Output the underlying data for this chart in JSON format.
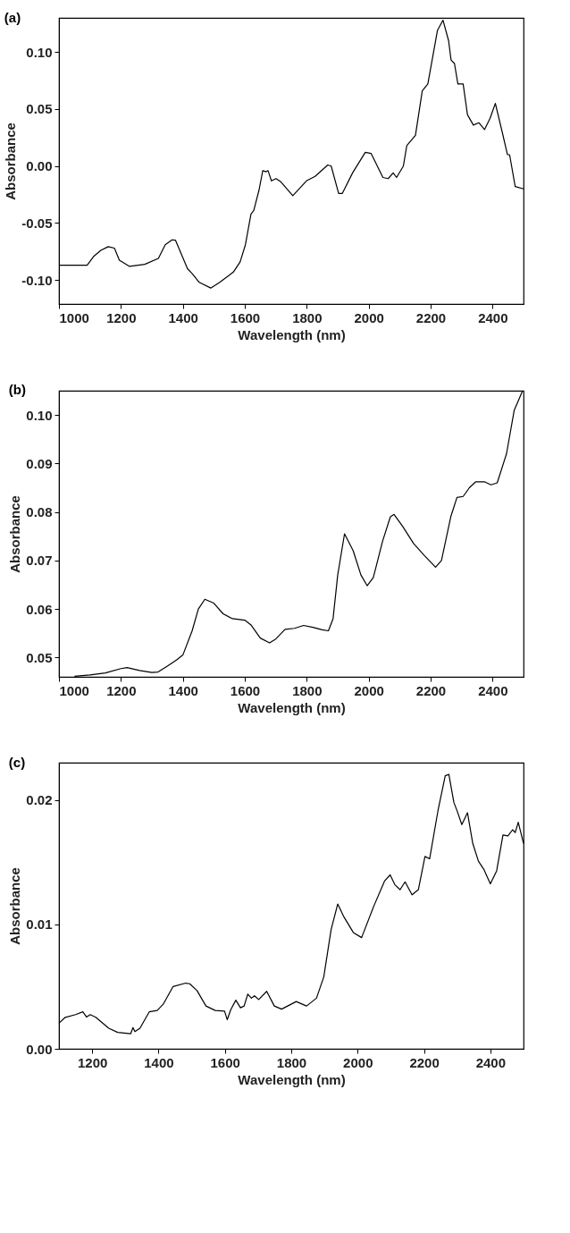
{
  "chart_data": [
    {
      "type": "line",
      "title": "(a)",
      "xlabel": "Wavelength (nm)",
      "ylabel": "Absorbance",
      "xlim": [
        1000,
        2500
      ],
      "ylim": [
        -0.121,
        0.13
      ],
      "xticks": [
        1000,
        1200,
        1400,
        1600,
        1800,
        2000,
        2200,
        2400
      ],
      "yticks": [
        {
          "value": -0.1,
          "label": "-0.10"
        },
        {
          "value": -0.05,
          "label": "-0.05"
        },
        {
          "value": 0,
          "label": "0.00"
        },
        {
          "value": 0.05,
          "label": "0.05"
        },
        {
          "value": 0.1,
          "label": "0.10"
        }
      ],
      "grid": false,
      "marker": "none",
      "line_style": "solid",
      "series": [
        {
          "color": "#000000",
          "x": [
            1000,
            1041,
            1091,
            1113,
            1135,
            1159,
            1179,
            1195,
            1228,
            1277,
            1321,
            1343,
            1365,
            1376,
            1415,
            1431,
            1453,
            1490,
            1519,
            1563,
            1585,
            1602,
            1620,
            1629,
            1646,
            1658,
            1669,
            1675,
            1686,
            1701,
            1717,
            1755,
            1799,
            1827,
            1868,
            1879,
            1903,
            1915,
            1948,
            1989,
            2008,
            2046,
            2063,
            2079,
            2090,
            2112,
            2123,
            2151,
            2173,
            2191,
            2222,
            2240,
            2258,
            2266,
            2277,
            2288,
            2305,
            2319,
            2338,
            2356,
            2374,
            2392,
            2409,
            2431,
            2448,
            2455,
            2473,
            2500
          ],
          "values": [
            -0.087,
            -0.087,
            -0.087,
            -0.079,
            -0.074,
            -0.0707,
            -0.072,
            -0.0826,
            -0.088,
            -0.0862,
            -0.081,
            -0.069,
            -0.0647,
            -0.065,
            -0.09,
            -0.0946,
            -0.102,
            -0.107,
            -0.102,
            -0.093,
            -0.084,
            -0.069,
            -0.042,
            -0.039,
            -0.021,
            -0.004,
            -0.005,
            -0.004,
            -0.013,
            -0.011,
            -0.014,
            -0.026,
            -0.013,
            -0.009,
            0.001,
            0.0,
            -0.024,
            -0.024,
            -0.006,
            0.012,
            0.011,
            -0.01,
            -0.011,
            -0.006,
            -0.01,
            0.0,
            0.018,
            0.027,
            0.066,
            0.072,
            0.119,
            0.128,
            0.11,
            0.093,
            0.09,
            0.072,
            0.072,
            0.045,
            0.036,
            0.038,
            0.032,
            0.042,
            0.055,
            0.03,
            0.01,
            0.01,
            -0.018,
            -0.02
          ]
        }
      ]
    },
    {
      "type": "line",
      "title": "(b)",
      "xlabel": "Wavelength (nm)",
      "ylabel": "Absorbance",
      "xlim": [
        1000,
        2500
      ],
      "ylim": [
        0.046,
        0.105
      ],
      "xticks": [
        1000,
        1200,
        1400,
        1600,
        1800,
        2000,
        2200,
        2400
      ],
      "yticks": [
        {
          "value": 0.05,
          "label": "0.05"
        },
        {
          "value": 0.06,
          "label": "0.06"
        },
        {
          "value": 0.07,
          "label": "0.07"
        },
        {
          "value": 0.08,
          "label": "0.08"
        },
        {
          "value": 0.09,
          "label": "0.09"
        },
        {
          "value": 0.1,
          "label": "0.10"
        }
      ],
      "grid": false,
      "marker": "none",
      "line_style": "solid",
      "series": [
        {
          "color": "#000000",
          "x": [
            1050,
            1100,
            1150,
            1200,
            1220,
            1260,
            1300,
            1320,
            1350,
            1380,
            1400,
            1430,
            1450,
            1471,
            1500,
            1530,
            1560,
            1600,
            1620,
            1650,
            1680,
            1700,
            1730,
            1760,
            1790,
            1820,
            1850,
            1870,
            1885,
            1900,
            1922,
            1950,
            1975,
            1995,
            2015,
            2045,
            2070,
            2082,
            2110,
            2145,
            2180,
            2216,
            2235,
            2265,
            2285,
            2305,
            2325,
            2345,
            2375,
            2395,
            2415,
            2445,
            2470,
            2497
          ],
          "values": [
            0.0461,
            0.0464,
            0.0468,
            0.0477,
            0.0479,
            0.0473,
            0.0469,
            0.047,
            0.0482,
            0.0495,
            0.0505,
            0.0555,
            0.06,
            0.062,
            0.0612,
            0.059,
            0.058,
            0.0577,
            0.0567,
            0.054,
            0.053,
            0.0538,
            0.0558,
            0.056,
            0.0566,
            0.0562,
            0.0557,
            0.0555,
            0.058,
            0.067,
            0.0755,
            0.072,
            0.067,
            0.0648,
            0.0665,
            0.074,
            0.079,
            0.0795,
            0.077,
            0.0735,
            0.071,
            0.0686,
            0.07,
            0.079,
            0.083,
            0.0832,
            0.085,
            0.0862,
            0.0862,
            0.0856,
            0.086,
            0.092,
            0.101,
            0.105
          ]
        }
      ]
    },
    {
      "type": "line",
      "title": "(c)",
      "xlabel": "Wavelength (nm)",
      "ylabel": "Absorbance",
      "xlim": [
        1100,
        2500
      ],
      "ylim": [
        0,
        0.023
      ],
      "xticks": [
        1200,
        1400,
        1600,
        1800,
        2000,
        2200,
        2400
      ],
      "yticks": [
        {
          "value": 0,
          "label": "0.00"
        },
        {
          "value": 0.01,
          "label": "0.01"
        },
        {
          "value": 0.02,
          "label": "0.02"
        }
      ],
      "grid": false,
      "marker": "none",
      "line_style": "solid",
      "series": [
        {
          "color": "#000000",
          "x": [
            1100,
            1119,
            1150,
            1172,
            1183,
            1194,
            1211,
            1250,
            1277,
            1316,
            1323,
            1329,
            1344,
            1372,
            1396,
            1414,
            1444,
            1482,
            1494,
            1516,
            1543,
            1571,
            1599,
            1607,
            1618,
            1633,
            1647,
            1658,
            1669,
            1680,
            1689,
            1702,
            1726,
            1749,
            1771,
            1815,
            1846,
            1876,
            1898,
            1920,
            1940,
            1959,
            1987,
            2012,
            2048,
            2081,
            2098,
            2112,
            2128,
            2143,
            2164,
            2183,
            2203,
            2217,
            2242,
            2264,
            2275,
            2290,
            2301,
            2314,
            2331,
            2347,
            2364,
            2380,
            2400,
            2419,
            2438,
            2453,
            2467,
            2475,
            2484,
            2500
          ],
          "values": [
            0.00206,
            0.00253,
            0.00275,
            0.00297,
            0.00256,
            0.00275,
            0.00253,
            0.00165,
            0.00132,
            0.00121,
            0.00171,
            0.00138,
            0.00165,
            0.00297,
            0.00308,
            0.00358,
            0.00501,
            0.00528,
            0.00523,
            0.00468,
            0.00344,
            0.00308,
            0.00303,
            0.00234,
            0.00316,
            0.00391,
            0.0033,
            0.00344,
            0.0044,
            0.00407,
            0.00426,
            0.00396,
            0.00462,
            0.00344,
            0.00319,
            0.0038,
            0.00344,
            0.00407,
            0.00578,
            0.00957,
            0.01164,
            0.01059,
            0.00935,
            0.00894,
            0.01142,
            0.01348,
            0.01398,
            0.0132,
            0.01279,
            0.01342,
            0.01238,
            0.01279,
            0.01546,
            0.01527,
            0.01912,
            0.02195,
            0.02206,
            0.01981,
            0.01904,
            0.01802,
            0.01898,
            0.01651,
            0.01508,
            0.01444,
            0.01326,
            0.01431,
            0.01719,
            0.01711,
            0.01761,
            0.01739,
            0.01821,
            0.01651
          ]
        }
      ]
    }
  ]
}
